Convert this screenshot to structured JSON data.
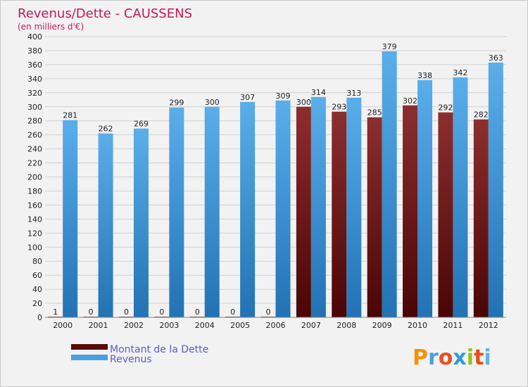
{
  "chart_data": {
    "type": "bar",
    "title": "Revenus/Dette - CAUSSENS",
    "subtitle": "(en milliers d'€)",
    "categories": [
      "2000",
      "2001",
      "2002",
      "2003",
      "2004",
      "2005",
      "2006",
      "2007",
      "2008",
      "2009",
      "2010",
      "2011",
      "2012"
    ],
    "series": [
      {
        "name": "Montant de la Dette",
        "color": "#7a1a1a",
        "values": [
          1,
          0,
          0,
          0,
          0,
          0,
          0,
          300,
          293,
          285,
          302,
          292,
          282
        ]
      },
      {
        "name": "Revenus",
        "color": "#4a9fe0",
        "values": [
          281,
          262,
          269,
          299,
          300,
          307,
          309,
          314,
          313,
          379,
          338,
          342,
          363
        ]
      }
    ],
    "ylim": [
      0,
      400
    ],
    "yticks": [
      0,
      20,
      40,
      60,
      80,
      100,
      120,
      140,
      160,
      180,
      200,
      220,
      240,
      260,
      280,
      300,
      320,
      340,
      360,
      380,
      400
    ],
    "grid": true,
    "legend_position": "bottom-left"
  },
  "logo": {
    "text": "Proxiti",
    "letter_colors": [
      "#f39200",
      "#4a9fe0",
      "#e8511e",
      "#2f9ad3",
      "#95c11f",
      "#e84e1b",
      "#5fb3e6"
    ]
  }
}
